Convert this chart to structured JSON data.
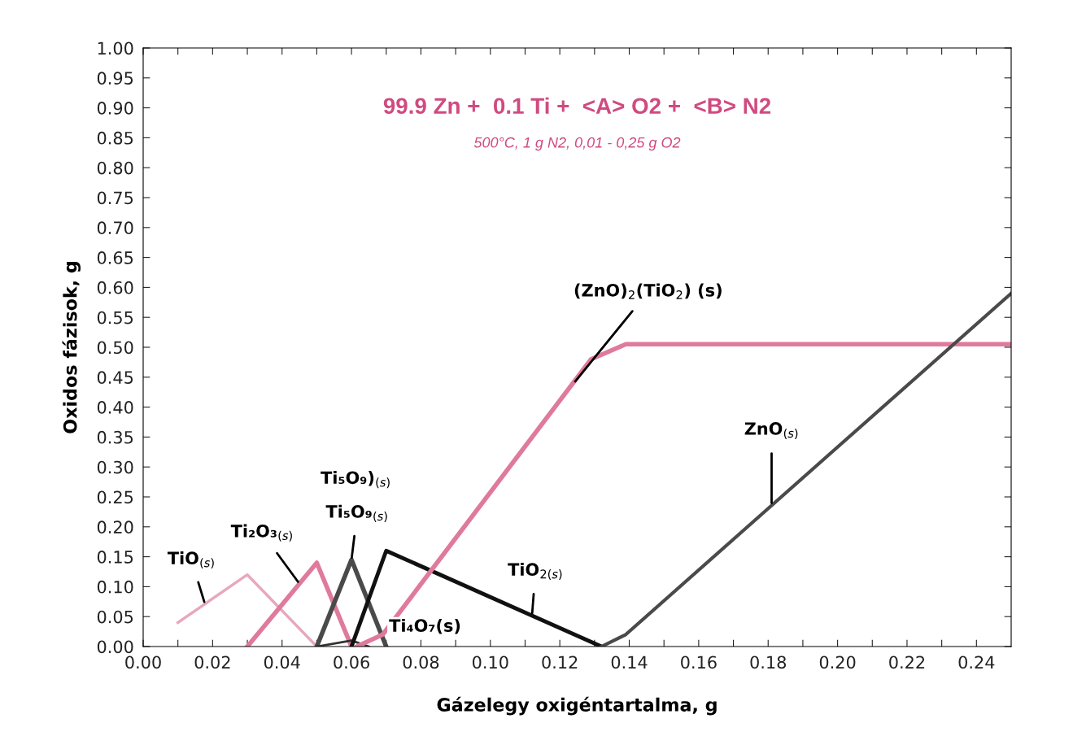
{
  "chart_data": {
    "type": "line",
    "title": "99.9 Zn +  0.1 Ti +  <A> O2 +  <B> N2",
    "subtitle": "500°C, 1 g N2, 0,01 - 0,25 g O2",
    "xlabel": "Gázelegy oxigéntartalma, g",
    "ylabel": "Oxidos fázisok, g",
    "xlim": [
      0,
      0.25
    ],
    "xticks": [
      {
        "value": 0,
        "label": "0.00"
      },
      {
        "value": 0.01,
        "label": null
      },
      {
        "value": 0.02,
        "label": "0.02"
      },
      {
        "value": 0.03,
        "label": null
      },
      {
        "value": 0.04,
        "label": "0.04"
      },
      {
        "value": 0.05,
        "label": null
      },
      {
        "value": 0.06,
        "label": "0.06"
      },
      {
        "value": 0.07,
        "label": null
      },
      {
        "value": 0.08,
        "label": "0.08"
      },
      {
        "value": 0.09,
        "label": null
      },
      {
        "value": 0.1,
        "label": "0.10"
      },
      {
        "value": 0.11,
        "label": null
      },
      {
        "value": 0.12,
        "label": "0.12"
      },
      {
        "value": 0.13,
        "label": null
      },
      {
        "value": 0.14,
        "label": "0.14"
      },
      {
        "value": 0.15,
        "label": null
      },
      {
        "value": 0.16,
        "label": "0.16"
      },
      {
        "value": 0.17,
        "label": null
      },
      {
        "value": 0.18,
        "label": "0.18"
      },
      {
        "value": 0.19,
        "label": null
      },
      {
        "value": 0.2,
        "label": "0.20"
      },
      {
        "value": 0.21,
        "label": null
      },
      {
        "value": 0.22,
        "label": "0.22"
      },
      {
        "value": 0.23,
        "label": null
      },
      {
        "value": 0.24,
        "label": "0.24"
      }
    ],
    "ylim": [
      0,
      1
    ],
    "yticks": [
      {
        "value": 0,
        "label": "0.00"
      },
      {
        "value": 0.05,
        "label": "0.05"
      },
      {
        "value": 0.1,
        "label": "0.10"
      },
      {
        "value": 0.15,
        "label": "0.15"
      },
      {
        "value": 0.2,
        "label": "0.20"
      },
      {
        "value": 0.25,
        "label": "0.25"
      },
      {
        "value": 0.3,
        "label": "0.30"
      },
      {
        "value": 0.35,
        "label": "0.35"
      },
      {
        "value": 0.4,
        "label": "0.40"
      },
      {
        "value": 0.45,
        "label": "0.45"
      },
      {
        "value": 0.5,
        "label": "0.50"
      },
      {
        "value": 0.55,
        "label": "0.55"
      },
      {
        "value": 0.6,
        "label": "0.60"
      },
      {
        "value": 0.65,
        "label": "0.65"
      },
      {
        "value": 0.7,
        "label": "0.70"
      },
      {
        "value": 0.75,
        "label": "0.75"
      },
      {
        "value": 0.8,
        "label": "0.80"
      },
      {
        "value": 0.85,
        "label": "0.85"
      },
      {
        "value": 0.9,
        "label": "0.90"
      },
      {
        "value": 0.95,
        "label": "0.95"
      },
      {
        "value": 1,
        "label": "1.00"
      }
    ],
    "grid": false,
    "legend": false,
    "marker": "none",
    "line_style": "solid",
    "series": [
      {
        "color": "#e8a8bc",
        "x": [
          0.01,
          0.03,
          0.05
        ],
        "values": [
          0.04,
          0.12,
          0.0
        ]
      },
      {
        "color": "#e07a9c",
        "x": [
          0.03,
          0.05,
          0.06
        ],
        "values": [
          0.0,
          0.14,
          0.0
        ]
      },
      {
        "color": "#4a4a4a",
        "x": [
          0.05,
          0.06,
          0.07
        ],
        "values": [
          0.0,
          0.145,
          0.0
        ]
      },
      {
        "color": "#333333",
        "x": [
          0.05,
          0.06,
          0.065
        ],
        "values": [
          0.0,
          0.01,
          0.0
        ]
      },
      {
        "color": "#111111",
        "x": [
          0.06,
          0.07,
          0.132
        ],
        "values": [
          0.0,
          0.16,
          0.0
        ]
      },
      {
        "color": "#e07a9c",
        "x": [
          0.0615,
          0.069,
          0.129,
          0.139,
          0.25
        ],
        "values": [
          0.0,
          0.02,
          0.48,
          0.505,
          0.505
        ]
      },
      {
        "color": "#4a4a4a",
        "x": [
          0.132,
          0.139,
          0.25
        ],
        "values": [
          0.0,
          0.02,
          0.59
        ]
      }
    ],
    "annotations": [
      {
        "text": "TiO$_{(s)}$",
        "x": 0.0178,
        "y": 0.071
      },
      {
        "text": "Ti₂O₃$_{(s)}$",
        "x": 0.045,
        "y": 0.105
      },
      "Ti₅O₉)$_{(s)}$",
      {
        "text": "Ti₅O₉$_{(s)}$",
        "x": 0.06,
        "y": 0.145
      },
      {
        "text": "Ti₄O₇(s)",
        "x": 0.062,
        "y": 0.01
      },
      {
        "text": "TiO$_{2(s)}$",
        "x": 0.112,
        "y": 0.052
      },
      {
        "text": "(ZnO)$_{2}$(TiO$_{2}$) (s)",
        "x": 0.124,
        "y": 0.44
      },
      {
        "text": "ZnO$_{(s)}$",
        "x": 0.181,
        "y": 0.236
      }
    ]
  }
}
